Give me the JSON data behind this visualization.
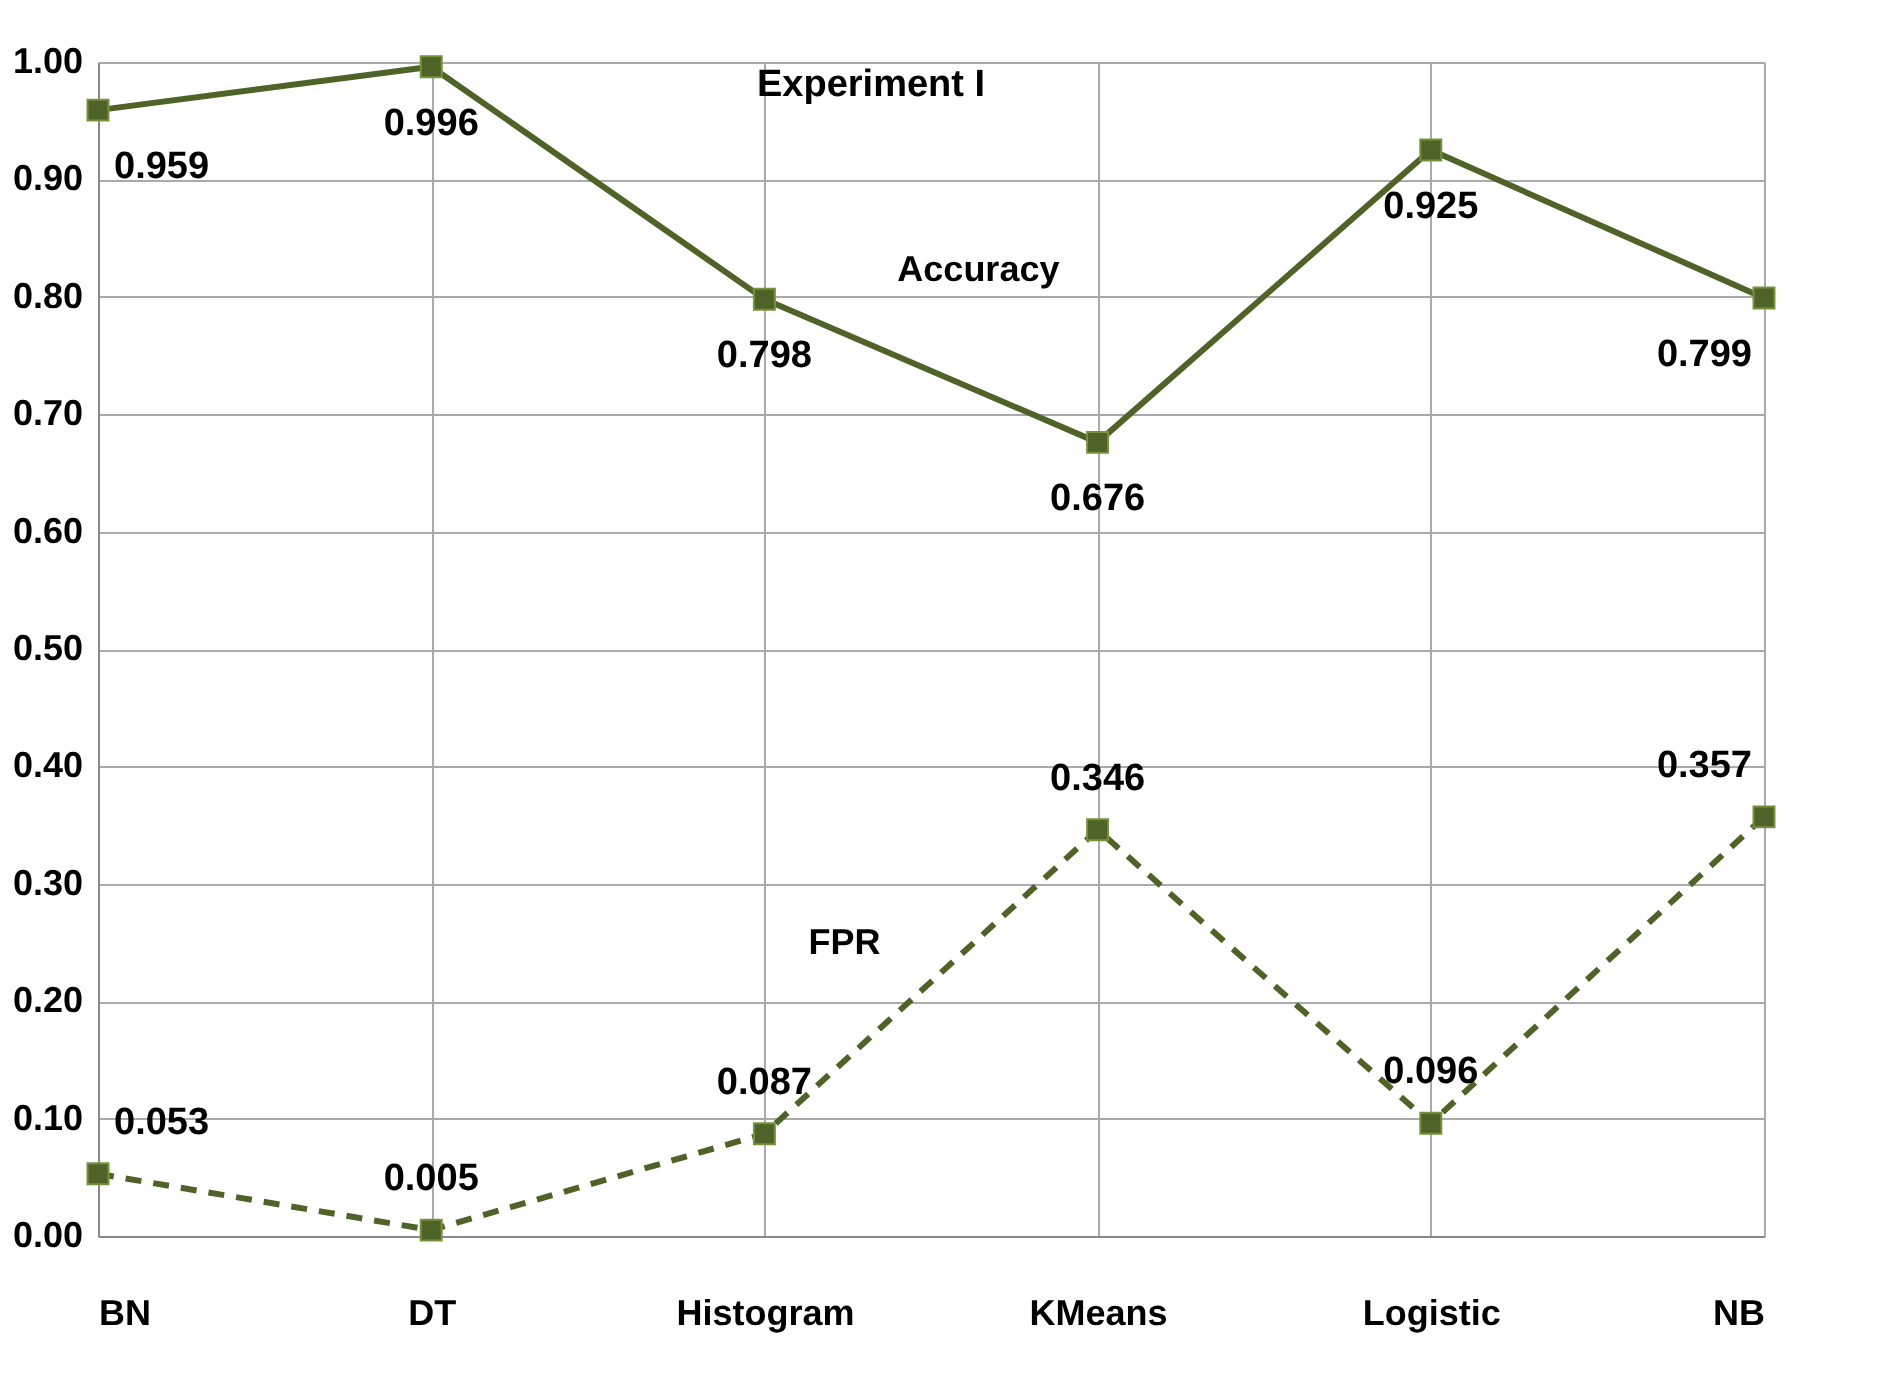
{
  "chart_data": {
    "type": "line",
    "title": "Experiment I",
    "categories": [
      "BN",
      "DT",
      "Histogram",
      "KMeans",
      "Logistic",
      "NB"
    ],
    "series": [
      {
        "name": "Accuracy",
        "color": "#4f6228",
        "values": [
          0.959,
          0.996,
          0.798,
          0.676,
          0.925,
          0.799
        ],
        "line_style": "solid"
      },
      {
        "name": "FPR",
        "color": "#4f6228",
        "values": [
          0.053,
          0.005,
          0.087,
          0.346,
          0.096,
          0.357
        ],
        "line_style": "dashed"
      }
    ],
    "ylim": [
      0,
      1
    ],
    "yticks": [
      {
        "value": 0,
        "label": "0.00"
      },
      {
        "value": 0.1,
        "label": "0.10"
      },
      {
        "value": 0.2,
        "label": "0.20"
      },
      {
        "value": 0.3,
        "label": "0.30"
      },
      {
        "value": 0.4,
        "label": "0.40"
      },
      {
        "value": 0.5,
        "label": "0.50"
      },
      {
        "value": 0.6,
        "label": "0.60"
      },
      {
        "value": 0.7,
        "label": "0.70"
      },
      {
        "value": 0.8,
        "label": "0.80"
      },
      {
        "value": 0.9,
        "label": "0.90"
      },
      {
        "value": 1,
        "label": "1.00"
      }
    ],
    "grid": true,
    "marker": "square",
    "data_labels": true
  }
}
